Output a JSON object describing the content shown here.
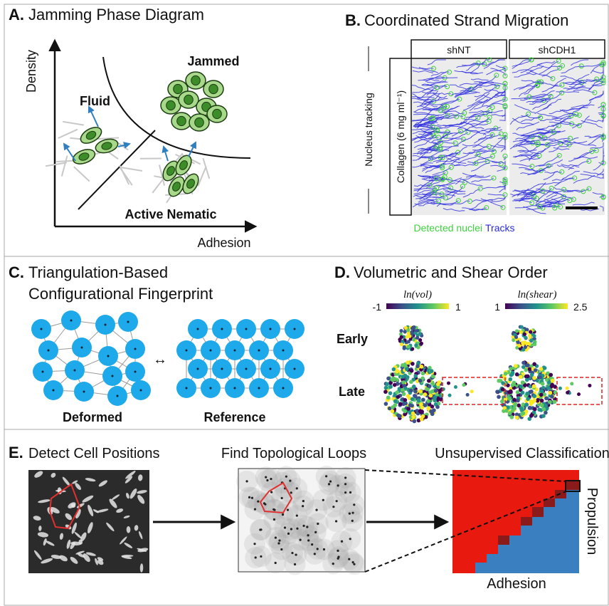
{
  "panel_a": {
    "letter": "A.",
    "title": "Jamming Phase Diagram",
    "y_label": "Density",
    "x_label": "Adhesion",
    "regions": [
      "Fluid",
      "Jammed",
      "Active Nematic"
    ]
  },
  "panel_b": {
    "letter": "B.",
    "title": "Coordinated Strand Migration",
    "conditions": [
      "shNT",
      "shCDH1"
    ],
    "row_label": "Nucleus tracking",
    "matrix_label": "Collagen (6 mg ml⁻¹)",
    "legend": [
      "Detected nuclei",
      "Tracks"
    ]
  },
  "panel_c": {
    "letter": "C.",
    "title_lines": [
      "Triangulation-Based",
      "Configurational Fingerprint"
    ],
    "configurations": [
      "Deformed",
      "Reference"
    ]
  },
  "panel_d": {
    "letter": "D.",
    "title": "Volumetric and Shear Order",
    "colorbars": [
      {
        "label": "ln(vol)",
        "min": -1,
        "max": 1
      },
      {
        "label": "ln(shear)",
        "min": 1,
        "max": 2.5
      }
    ],
    "stages": [
      "Early",
      "Late"
    ]
  },
  "panel_e": {
    "letter": "E.",
    "steps": [
      "Detect Cell Positions",
      "Find Topological Loops",
      "Unsupervised Classification"
    ],
    "y_label": "Propulsion",
    "x_label": "Adhesion"
  }
}
